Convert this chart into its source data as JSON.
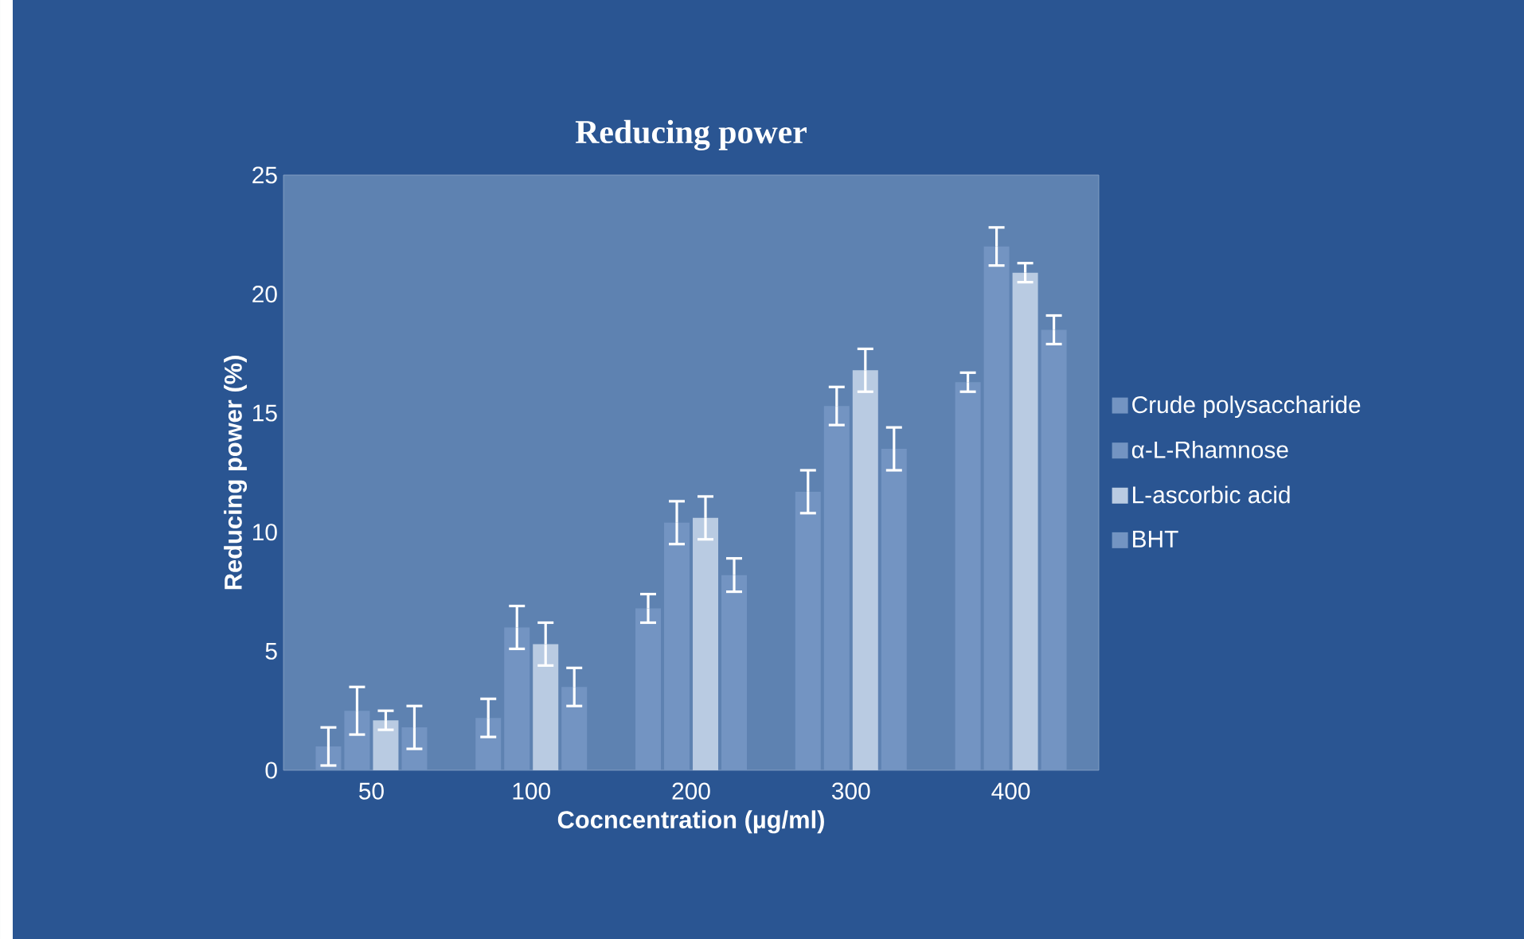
{
  "chart_data": {
    "type": "bar",
    "title": "Reducing power",
    "xlabel": "Cocncentration (µg/ml)",
    "ylabel": "Reducing power (%)",
    "categories": [
      "50",
      "100",
      "200",
      "300",
      "400"
    ],
    "series": [
      {
        "name": "Crude polysaccharide",
        "color": "#7394c2",
        "values": [
          1.0,
          2.2,
          6.8,
          11.7,
          16.3
        ],
        "errors": [
          0.8,
          0.8,
          0.6,
          0.9,
          0.4
        ]
      },
      {
        "name": "α-L-Rhamnose",
        "color": "#7394c2",
        "values": [
          2.5,
          6.0,
          10.4,
          15.3,
          22.0
        ],
        "errors": [
          1.0,
          0.9,
          0.9,
          0.8,
          0.8
        ]
      },
      {
        "name": "L-ascorbic acid",
        "color": "#b9cbe2",
        "values": [
          2.1,
          5.3,
          10.6,
          16.8,
          20.9
        ],
        "errors": [
          0.4,
          0.9,
          0.9,
          0.9,
          0.4
        ]
      },
      {
        "name": "BHT",
        "color": "#7394c2",
        "values": [
          1.8,
          3.5,
          8.2,
          13.5,
          18.5
        ],
        "errors": [
          0.9,
          0.8,
          0.7,
          0.9,
          0.6
        ]
      }
    ],
    "ylim": [
      0,
      25
    ],
    "yticks": [
      0,
      5,
      10,
      15,
      20,
      25
    ],
    "grid": false,
    "legend": "right"
  }
}
